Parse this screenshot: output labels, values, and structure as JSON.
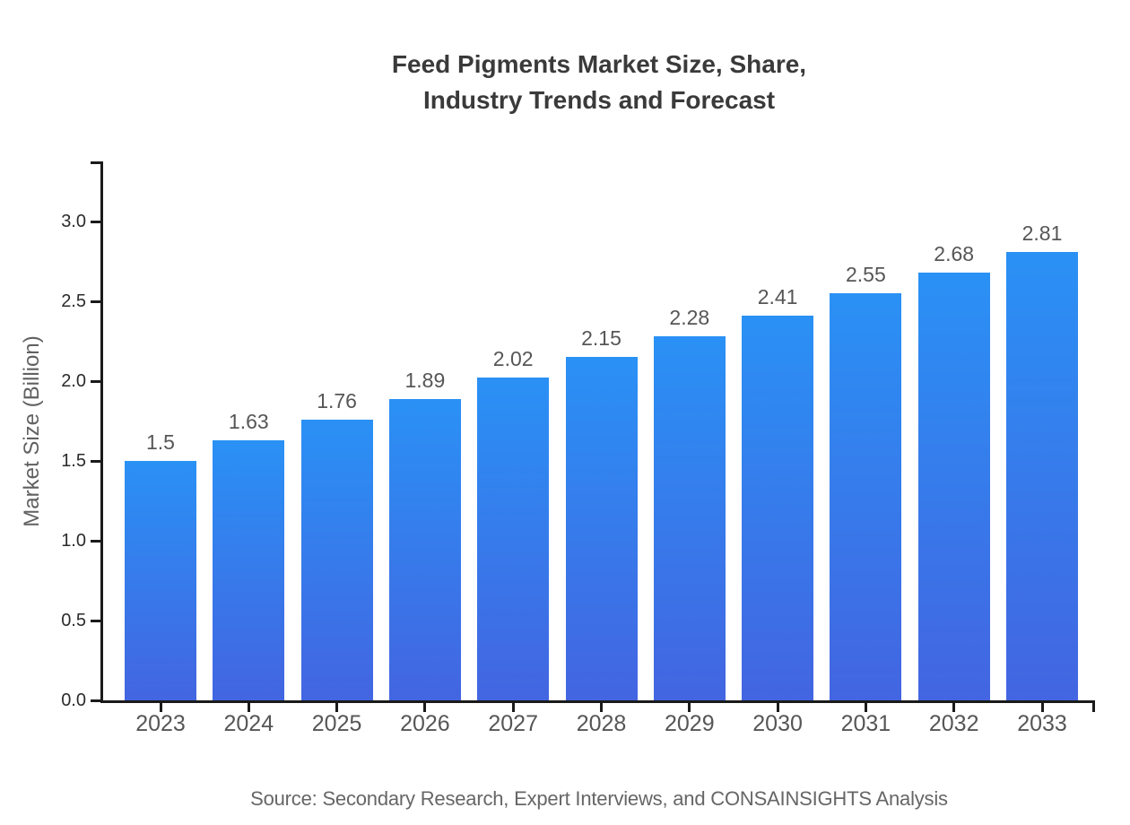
{
  "chart_data": {
    "type": "bar",
    "title_lines": [
      "Feed Pigments Market Size, Share,",
      "Industry Trends and Forecast"
    ],
    "categories": [
      "2023",
      "2024",
      "2025",
      "2026",
      "2027",
      "2028",
      "2029",
      "2030",
      "2031",
      "2032",
      "2033"
    ],
    "values": [
      1.5,
      1.63,
      1.76,
      1.89,
      2.02,
      2.15,
      2.28,
      2.41,
      2.55,
      2.68,
      2.81
    ],
    "value_labels": [
      "1.5",
      "1.63",
      "1.76",
      "1.89",
      "2.02",
      "2.15",
      "2.28",
      "2.41",
      "2.55",
      "2.68",
      "2.81"
    ],
    "ylabel": "Market Size (Billion)",
    "ytick_labels": [
      "0.0",
      "0.5",
      "1.0",
      "1.5",
      "2.0",
      "2.5",
      "3.0"
    ],
    "ylim": [
      0.0,
      3.37
    ],
    "grid": false,
    "legend_position": "none",
    "source": "Source: Secondary Research, Expert Interviews, and CONSAINSIGHTS Analysis",
    "colors": {
      "bar_top": "#2a91f5",
      "bar_bottom": "#4365e1",
      "axis": "#1a1a1a",
      "title": "#3a3a3a",
      "ytick_label": "#2b2b2b",
      "xtick_label": "#565656",
      "value_label": "#565656",
      "source_text": "#666666",
      "background": "#ffffff"
    }
  }
}
